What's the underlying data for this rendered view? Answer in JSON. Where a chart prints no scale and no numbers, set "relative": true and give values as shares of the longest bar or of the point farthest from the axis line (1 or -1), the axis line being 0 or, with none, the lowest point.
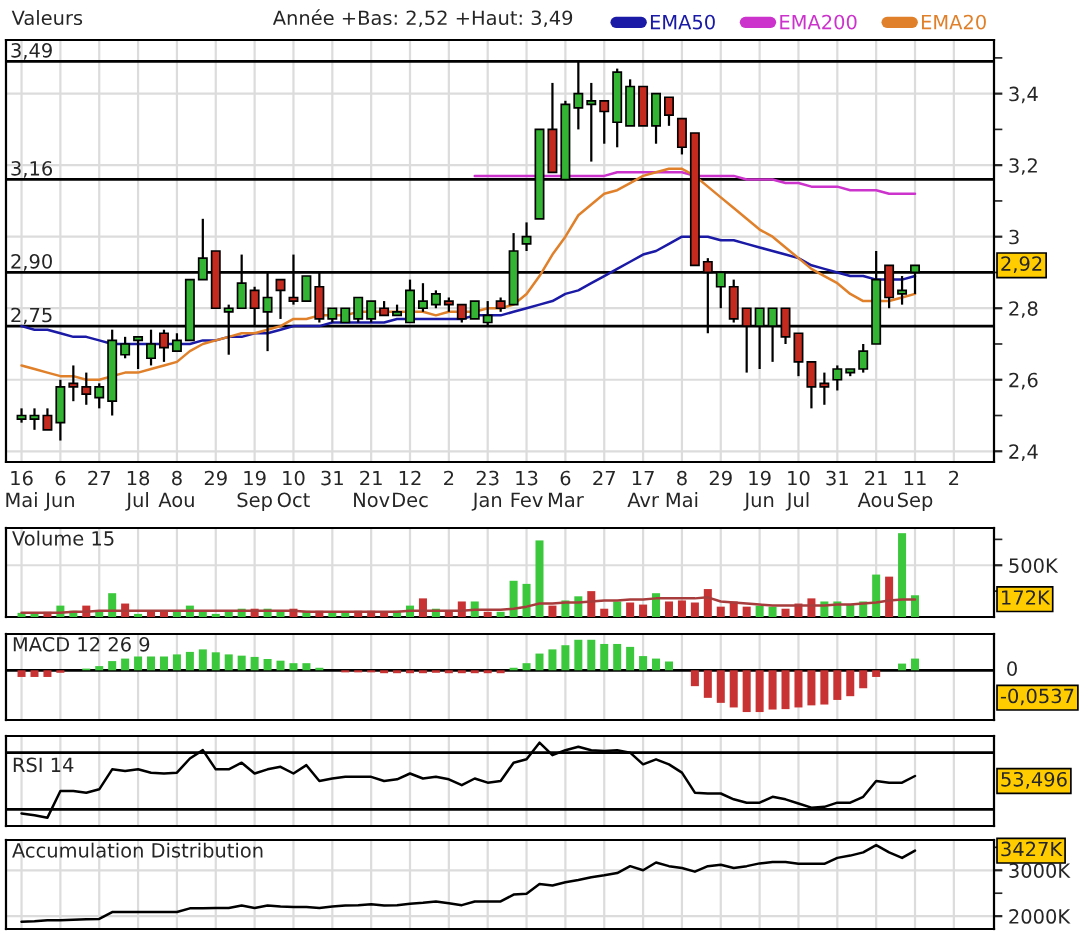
{
  "chart_data": [
    {
      "type": "candlestick",
      "title": "Valeurs",
      "subtitle": "Année +Bas: 2,52 +Haut: 3,49",
      "categories": [
        "16\nMai",
        null,
        null,
        "6\nJun",
        null,
        null,
        "27",
        null,
        null,
        "18\nJul",
        null,
        null,
        "8\nAou",
        null,
        null,
        "29",
        null,
        null,
        "19\nSep",
        null,
        null,
        "10\nOct",
        null,
        null,
        "31",
        null,
        null,
        "21\nNov",
        null,
        null,
        "12\nDec",
        null,
        null,
        "2",
        null,
        null,
        "23\nJan",
        null,
        null,
        "13\nFev",
        null,
        null,
        "6\nMar",
        null,
        null,
        "27",
        null,
        null,
        "17\nAvr",
        null,
        null,
        "8\nMai",
        null,
        null,
        "29",
        null,
        null,
        "19\nJun",
        null,
        null,
        "10\nJul",
        null,
        null,
        "31",
        null,
        null,
        "21\nAou",
        null,
        null,
        "11\nSep",
        null,
        null,
        "2",
        null,
        null,
        null
      ],
      "ohlc": [
        [
          2.49,
          2.52,
          2.48,
          2.5
        ],
        [
          2.49,
          2.52,
          2.46,
          2.5
        ],
        [
          2.5,
          2.52,
          2.46,
          2.46
        ],
        [
          2.48,
          2.6,
          2.43,
          2.58
        ],
        [
          2.59,
          2.64,
          2.54,
          2.58
        ],
        [
          2.58,
          2.62,
          2.53,
          2.56
        ],
        [
          2.55,
          2.59,
          2.52,
          2.58
        ],
        [
          2.54,
          2.74,
          2.5,
          2.71
        ],
        [
          2.67,
          2.72,
          2.66,
          2.7
        ],
        [
          2.71,
          2.72,
          2.63,
          2.72
        ],
        [
          2.66,
          2.74,
          2.64,
          2.7
        ],
        [
          2.73,
          2.74,
          2.65,
          2.69
        ],
        [
          2.68,
          2.73,
          2.68,
          2.71
        ],
        [
          2.71,
          2.88,
          2.71,
          2.88
        ],
        [
          2.88,
          3.05,
          2.88,
          2.94
        ],
        [
          2.96,
          2.96,
          2.8,
          2.8
        ],
        [
          2.79,
          2.81,
          2.67,
          2.8
        ],
        [
          2.8,
          2.95,
          2.8,
          2.87
        ],
        [
          2.85,
          2.86,
          2.75,
          2.8
        ],
        [
          2.79,
          2.9,
          2.68,
          2.83
        ],
        [
          2.88,
          2.88,
          2.77,
          2.85
        ],
        [
          2.83,
          2.95,
          2.81,
          2.82
        ],
        [
          2.82,
          2.89,
          2.82,
          2.89
        ],
        [
          2.86,
          2.9,
          2.76,
          2.77
        ],
        [
          2.77,
          2.8,
          2.76,
          2.8
        ],
        [
          2.76,
          2.8,
          2.76,
          2.8
        ],
        [
          2.77,
          2.83,
          2.76,
          2.83
        ],
        [
          2.77,
          2.82,
          2.76,
          2.82
        ],
        [
          2.8,
          2.82,
          2.78,
          2.78
        ],
        [
          2.78,
          2.81,
          2.78,
          2.79
        ],
        [
          2.76,
          2.88,
          2.76,
          2.85
        ],
        [
          2.8,
          2.87,
          2.79,
          2.82
        ],
        [
          2.81,
          2.85,
          2.8,
          2.84
        ],
        [
          2.82,
          2.83,
          2.79,
          2.81
        ],
        [
          2.81,
          2.81,
          2.76,
          2.77
        ],
        [
          2.77,
          2.82,
          2.77,
          2.82
        ],
        [
          2.76,
          2.82,
          2.75,
          2.78
        ],
        [
          2.82,
          2.83,
          2.79,
          2.8
        ],
        [
          2.81,
          3.01,
          2.81,
          2.96
        ],
        [
          2.98,
          3.04,
          2.96,
          3.0
        ],
        [
          3.05,
          3.3,
          3.05,
          3.3
        ],
        [
          3.3,
          3.43,
          3.18,
          3.18
        ],
        [
          3.16,
          3.38,
          3.16,
          3.37
        ],
        [
          3.36,
          3.49,
          3.3,
          3.4
        ],
        [
          3.37,
          3.43,
          3.21,
          3.38
        ],
        [
          3.38,
          3.38,
          3.26,
          3.35
        ],
        [
          3.32,
          3.47,
          3.25,
          3.46
        ],
        [
          3.31,
          3.44,
          3.31,
          3.42
        ],
        [
          3.42,
          3.42,
          3.31,
          3.31
        ],
        [
          3.31,
          3.4,
          3.26,
          3.4
        ],
        [
          3.39,
          3.39,
          3.31,
          3.34
        ],
        [
          3.33,
          3.33,
          3.23,
          3.25
        ],
        [
          3.29,
          3.29,
          2.92,
          2.92
        ],
        [
          2.93,
          2.94,
          2.73,
          2.9
        ],
        [
          2.86,
          2.9,
          2.8,
          2.9
        ],
        [
          2.86,
          2.88,
          2.76,
          2.77
        ],
        [
          2.8,
          2.8,
          2.62,
          2.75
        ],
        [
          2.75,
          2.8,
          2.63,
          2.8
        ],
        [
          2.75,
          2.8,
          2.65,
          2.8
        ],
        [
          2.8,
          2.8,
          2.7,
          2.72
        ],
        [
          2.73,
          2.73,
          2.61,
          2.65
        ],
        [
          2.65,
          2.65,
          2.52,
          2.58
        ],
        [
          2.59,
          2.62,
          2.53,
          2.58
        ],
        [
          2.6,
          2.64,
          2.57,
          2.63
        ],
        [
          2.62,
          2.63,
          2.61,
          2.63
        ],
        [
          2.63,
          2.7,
          2.62,
          2.68
        ],
        [
          2.7,
          2.96,
          2.7,
          2.88
        ],
        [
          2.92,
          2.92,
          2.8,
          2.83
        ],
        [
          2.84,
          2.89,
          2.81,
          2.85
        ],
        [
          2.9,
          2.92,
          2.84,
          2.92
        ],
        null,
        null,
        null,
        null,
        null,
        null
      ],
      "colors": [
        "#33b533",
        "#33b533",
        "#c42a1e",
        "#33b533",
        "#c42a1e",
        "#c42a1e",
        "#33b533",
        "#33b533",
        "#33b533",
        "#33b533",
        "#33b533",
        "#c42a1e",
        "#33b533",
        "#33b533",
        "#33b533",
        "#c42a1e",
        "#33b533",
        "#33b533",
        "#c42a1e",
        "#33b533",
        "#c42a1e",
        "#c42a1e",
        "#33b533",
        "#c42a1e",
        "#33b533",
        "#33b533",
        "#33b533",
        "#33b533",
        "#c42a1e",
        "#33b533",
        "#33b533",
        "#33b533",
        "#33b533",
        "#c42a1e",
        "#c42a1e",
        "#33b533",
        "#33b533",
        "#c42a1e",
        "#33b533",
        "#33b533",
        "#33b533",
        "#c42a1e",
        "#33b533",
        "#33b533",
        "#33b533",
        "#c42a1e",
        "#33b533",
        "#33b533",
        "#c42a1e",
        "#33b533",
        "#c42a1e",
        "#c42a1e",
        "#c42a1e",
        "#c42a1e",
        "#33b533",
        "#c42a1e",
        "#c42a1e",
        "#33b533",
        "#33b533",
        "#c42a1e",
        "#c42a1e",
        "#c42a1e",
        "#c42a1e",
        "#33b533",
        "#33b533",
        "#33b533",
        "#33b533",
        "#c42a1e",
        "#33b533",
        "#33b533",
        null,
        null,
        null,
        null,
        null,
        null
      ],
      "series": [
        {
          "name": "EMA50",
          "type": "line",
          "color": "#1a1aa6",
          "values": [
            2.75,
            2.74,
            2.74,
            2.73,
            2.72,
            2.72,
            2.71,
            2.7,
            2.7,
            2.7,
            2.7,
            2.7,
            2.7,
            2.7,
            2.71,
            2.71,
            2.72,
            2.72,
            2.73,
            2.73,
            2.74,
            2.75,
            2.75,
            2.75,
            2.76,
            2.76,
            2.76,
            2.76,
            2.76,
            2.77,
            2.77,
            2.77,
            2.77,
            2.77,
            2.77,
            2.78,
            2.78,
            2.78,
            2.79,
            2.8,
            2.81,
            2.82,
            2.84,
            2.85,
            2.87,
            2.89,
            2.91,
            2.93,
            2.95,
            2.96,
            2.98,
            3.0,
            3.0,
            3.0,
            2.99,
            2.99,
            2.98,
            2.97,
            2.96,
            2.95,
            2.94,
            2.92,
            2.91,
            2.9,
            2.89,
            2.89,
            2.88,
            2.88,
            2.88,
            2.89,
            null,
            null,
            null,
            null,
            null,
            null
          ]
        },
        {
          "name": "EMA200",
          "type": "line",
          "color": "#cc33cc",
          "values": [
            null,
            null,
            null,
            null,
            null,
            null,
            null,
            null,
            null,
            null,
            null,
            null,
            null,
            null,
            null,
            null,
            null,
            null,
            null,
            null,
            null,
            null,
            null,
            null,
            null,
            null,
            null,
            null,
            null,
            null,
            null,
            null,
            null,
            null,
            null,
            3.17,
            3.17,
            3.17,
            3.17,
            3.17,
            3.17,
            3.17,
            3.17,
            3.17,
            3.17,
            3.17,
            3.18,
            3.18,
            3.18,
            3.18,
            3.18,
            3.18,
            3.17,
            3.17,
            3.17,
            3.17,
            3.16,
            3.16,
            3.16,
            3.15,
            3.15,
            3.14,
            3.14,
            3.14,
            3.13,
            3.13,
            3.13,
            3.12,
            3.12,
            3.12,
            null,
            null,
            null,
            null,
            null,
            null
          ]
        },
        {
          "name": "EMA20",
          "type": "line",
          "color": "#e0802a",
          "values": [
            2.64,
            2.63,
            2.62,
            2.61,
            2.61,
            2.6,
            2.6,
            2.61,
            2.62,
            2.62,
            2.63,
            2.64,
            2.65,
            2.68,
            2.7,
            2.71,
            2.72,
            2.73,
            2.73,
            2.74,
            2.75,
            2.77,
            2.77,
            2.78,
            2.78,
            2.78,
            2.79,
            2.79,
            2.79,
            2.79,
            2.79,
            2.79,
            2.78,
            2.79,
            2.79,
            2.79,
            2.8,
            2.8,
            2.81,
            2.84,
            2.89,
            2.95,
            3.0,
            3.06,
            3.09,
            3.12,
            3.13,
            3.15,
            3.17,
            3.18,
            3.19,
            3.19,
            3.17,
            3.14,
            3.11,
            3.08,
            3.05,
            3.02,
            3.0,
            2.97,
            2.94,
            2.91,
            2.89,
            2.87,
            2.84,
            2.82,
            2.82,
            2.82,
            2.83,
            2.84,
            null,
            null,
            null,
            null,
            null,
            null
          ]
        }
      ],
      "ylim": [
        2.37,
        3.55
      ],
      "yticks": [
        {
          "value": 2.4,
          "label": "2,4"
        },
        {
          "value": 2.5,
          "label": null
        },
        {
          "value": 2.6,
          "label": "2,6"
        },
        {
          "value": 2.7,
          "label": null
        },
        {
          "value": 2.8,
          "label": "2,8"
        },
        {
          "value": 2.9,
          "label": null
        },
        3,
        {
          "value": 3.1,
          "label": null
        },
        {
          "value": 3.2,
          "label": "3,2"
        },
        {
          "value": 3.3,
          "label": null
        },
        {
          "value": 3.4,
          "label": "3,4"
        },
        {
          "value": 3.5,
          "label": null
        }
      ],
      "grid": true,
      "legend": "top right",
      "ref_lines": [
        {
          "axis": "y",
          "value": 3.49,
          "label": "3,49",
          "color": "#000000"
        },
        {
          "axis": "y",
          "value": 3.16,
          "label": "3,16",
          "color": "#000000"
        },
        {
          "axis": "y",
          "value": 2.9,
          "label": "2,90",
          "color": "#000000"
        },
        {
          "axis": "y",
          "value": 2.75,
          "label": "2,75",
          "color": "#000000"
        }
      ],
      "annotations": [
        {
          "text": "2,92",
          "y": 2.92
        }
      ]
    },
    {
      "type": "bar",
      "title": "Volume 15",
      "categories": [
        null,
        null,
        null,
        null,
        null,
        null,
        null,
        null,
        null,
        null,
        null,
        null,
        null,
        null,
        null,
        null,
        null,
        null,
        null,
        null,
        null,
        null,
        null,
        null,
        null,
        null,
        null,
        null,
        null,
        null,
        null,
        null,
        null,
        null,
        null,
        null,
        null,
        null,
        null,
        null,
        null,
        null,
        null,
        null,
        null,
        null,
        null,
        null,
        null,
        null,
        null,
        null,
        null,
        null,
        null,
        null,
        null,
        null,
        null,
        null,
        null,
        null,
        null,
        null,
        null,
        null,
        null,
        null,
        null,
        null,
        null,
        null,
        null,
        null,
        null,
        null
      ],
      "series": [
        {
          "type": "bar",
          "colors": [
            "#3cc83c",
            "#3cc83c",
            "#c83232",
            "#3cc83c",
            "#3cc83c",
            "#c83232",
            "#3cc83c",
            "#3cc83c",
            "#c83232",
            "#3cc83c",
            "#c83232",
            "#c83232",
            "#3cc83c",
            "#3cc83c",
            "#3cc83c",
            "#3cc83c",
            "#3cc83c",
            "#3cc83c",
            "#c83232",
            "#3cc83c",
            "#3cc83c",
            "#c83232",
            "#3cc83c",
            "#c83232",
            "#3cc83c",
            "#3cc83c",
            "#c83232",
            "#c83232",
            "#c83232",
            "#3cc83c",
            "#3cc83c",
            "#c83232",
            "#3cc83c",
            "#c83232",
            "#c83232",
            "#3cc83c",
            "#c83232",
            "#3cc83c",
            "#3cc83c",
            "#3cc83c",
            "#3cc83c",
            "#c83232",
            "#3cc83c",
            "#3cc83c",
            "#c83232",
            "#c83232",
            "#3cc83c",
            "#c83232",
            "#c83232",
            "#3cc83c",
            "#c83232",
            "#c83232",
            "#c83232",
            "#c83232",
            "#c83232",
            "#c83232",
            "#c83232",
            "#3cc83c",
            "#3cc83c",
            "#c83232",
            "#c83232",
            "#c83232",
            "#3cc83c",
            "#3cc83c",
            "#3cc83c",
            "#3cc83c",
            "#3cc83c",
            "#c83232",
            "#3cc83c",
            "#3cc83c",
            null,
            null,
            null,
            null,
            null,
            null
          ],
          "values": [
            40000,
            40000,
            50000,
            110000,
            60000,
            110000,
            60000,
            230000,
            130000,
            30000,
            60000,
            60000,
            60000,
            110000,
            60000,
            30000,
            50000,
            80000,
            80000,
            80000,
            60000,
            80000,
            60000,
            60000,
            40000,
            40000,
            60000,
            60000,
            40000,
            60000,
            110000,
            180000,
            80000,
            60000,
            150000,
            150000,
            50000,
            50000,
            350000,
            320000,
            740000,
            110000,
            160000,
            200000,
            250000,
            80000,
            150000,
            140000,
            120000,
            230000,
            150000,
            160000,
            140000,
            270000,
            100000,
            150000,
            100000,
            110000,
            100000,
            80000,
            130000,
            180000,
            150000,
            150000,
            120000,
            150000,
            410000,
            390000,
            810000,
            210000,
            null,
            null,
            null,
            null,
            null,
            null
          ]
        },
        {
          "type": "line",
          "color": "#a83c3c",
          "values": [
            40000,
            40000,
            40000,
            40000,
            50000,
            50000,
            60000,
            60000,
            60000,
            60000,
            60000,
            60000,
            60000,
            60000,
            60000,
            60000,
            60000,
            60000,
            60000,
            60000,
            60000,
            60000,
            50000,
            50000,
            50000,
            50000,
            50000,
            50000,
            50000,
            50000,
            60000,
            60000,
            60000,
            60000,
            60000,
            70000,
            70000,
            70000,
            80000,
            100000,
            130000,
            130000,
            140000,
            140000,
            150000,
            160000,
            160000,
            170000,
            170000,
            180000,
            180000,
            180000,
            180000,
            190000,
            150000,
            140000,
            130000,
            120000,
            110000,
            110000,
            110000,
            110000,
            110000,
            120000,
            120000,
            130000,
            140000,
            160000,
            170000,
            170000,
            null,
            null,
            null,
            null,
            null,
            null
          ]
        }
      ],
      "ylim": [
        0,
        860000
      ],
      "yticks": [
        {
          "value": 250000,
          "label": null
        },
        {
          "value": 500000,
          "label": "500K"
        },
        {
          "value": 750000,
          "label": null
        }
      ],
      "grid": true,
      "tick_labels": "y",
      "annotations": [
        {
          "text": "172K",
          "y": 172000
        }
      ]
    },
    {
      "type": "bar",
      "title": "MACD 12 26 9",
      "relative": true,
      "categories": [
        null,
        null,
        null,
        null,
        null,
        null,
        null,
        null,
        null,
        null,
        null,
        null,
        null,
        null,
        null,
        null,
        null,
        null,
        null,
        null,
        null,
        null,
        null,
        null,
        null,
        null,
        null,
        null,
        null,
        null,
        null,
        null,
        null,
        null,
        null,
        null,
        null,
        null,
        null,
        null,
        null,
        null,
        null,
        null,
        null,
        null,
        null,
        null,
        null,
        null,
        null,
        null,
        null,
        null,
        null,
        null,
        null,
        null,
        null,
        null,
        null,
        null,
        null,
        null,
        null,
        null,
        null,
        null,
        null,
        null,
        null,
        null,
        null,
        null,
        null,
        null
      ],
      "values": [
        -0.16,
        -0.16,
        -0.16,
        -0.06,
        null,
        0.04,
        0.1,
        0.22,
        0.28,
        0.33,
        0.33,
        0.33,
        0.38,
        0.44,
        0.5,
        0.43,
        0.38,
        0.35,
        0.32,
        0.27,
        0.23,
        0.17,
        0.17,
        0.06,
        null,
        -0.05,
        -0.05,
        -0.05,
        -0.07,
        -0.07,
        -0.07,
        -0.07,
        -0.06,
        -0.07,
        -0.07,
        -0.07,
        -0.07,
        -0.07,
        0.06,
        0.17,
        0.4,
        0.5,
        0.6,
        0.73,
        0.73,
        0.63,
        0.63,
        0.56,
        0.34,
        0.28,
        0.21,
        null,
        -0.38,
        -0.66,
        -0.78,
        -0.89,
        -1,
        -1,
        -0.94,
        -0.93,
        -0.89,
        -0.84,
        -0.82,
        -0.71,
        -0.62,
        -0.43,
        -0.16,
        null,
        0.16,
        0.28,
        null,
        null,
        null,
        null,
        null,
        null
      ],
      "colors": [
        "#c83232",
        "#c83232",
        "#c83232",
        "#c83232",
        null,
        "#3cc83c",
        "#3cc83c",
        "#3cc83c",
        "#3cc83c",
        "#3cc83c",
        "#3cc83c",
        "#3cc83c",
        "#3cc83c",
        "#3cc83c",
        "#3cc83c",
        "#3cc83c",
        "#3cc83c",
        "#3cc83c",
        "#3cc83c",
        "#3cc83c",
        "#3cc83c",
        "#3cc83c",
        "#3cc83c",
        "#3cc83c",
        null,
        "#c83232",
        "#c83232",
        "#c83232",
        "#c83232",
        "#c83232",
        "#c83232",
        "#c83232",
        "#c83232",
        "#c83232",
        "#c83232",
        "#c83232",
        "#c83232",
        "#c83232",
        "#3cc83c",
        "#3cc83c",
        "#3cc83c",
        "#3cc83c",
        "#3cc83c",
        "#3cc83c",
        "#3cc83c",
        "#3cc83c",
        "#3cc83c",
        "#3cc83c",
        "#3cc83c",
        "#3cc83c",
        "#3cc83c",
        null,
        "#c83232",
        "#c83232",
        "#c83232",
        "#c83232",
        "#c83232",
        "#c83232",
        "#c83232",
        "#c83232",
        "#c83232",
        "#c83232",
        "#c83232",
        "#c83232",
        "#c83232",
        "#c83232",
        "#c83232",
        null,
        "#3cc83c",
        "#3cc83c",
        null,
        null,
        null,
        null,
        null,
        null
      ],
      "ref_lines": [
        {
          "axis": "y",
          "value": 0,
          "label": "0",
          "color": "#000000"
        }
      ],
      "grid": "x",
      "tick_labels": false,
      "annotations": [
        "-0,0537"
      ]
    },
    {
      "type": "line",
      "title": "RSI 14",
      "color": "#000000",
      "relative": true,
      "categories": [
        null,
        null,
        null,
        null,
        null,
        null,
        null,
        null,
        null,
        null,
        null,
        null,
        null,
        null,
        null,
        null,
        null,
        null,
        null,
        null,
        null,
        null,
        null,
        null,
        null,
        null,
        null,
        null,
        null,
        null,
        null,
        null,
        null,
        null,
        null,
        null,
        null,
        null,
        null,
        null,
        null,
        null,
        null,
        null,
        null,
        null,
        null,
        null,
        null,
        null,
        null,
        null,
        null,
        null,
        null,
        null,
        null,
        null,
        null,
        null,
        null,
        null,
        null,
        null,
        null,
        null,
        null,
        null,
        null,
        null,
        null,
        null,
        null,
        null,
        null,
        null
      ],
      "values": [
        0.15,
        0.13,
        0.1,
        0.42,
        0.42,
        0.4,
        0.44,
        0.68,
        0.66,
        0.68,
        0.64,
        0.63,
        0.64,
        0.81,
        0.91,
        0.68,
        0.68,
        0.76,
        0.63,
        0.68,
        0.71,
        0.63,
        0.73,
        0.54,
        0.57,
        0.59,
        0.59,
        0.59,
        0.54,
        0.56,
        0.63,
        0.57,
        0.59,
        0.56,
        0.49,
        0.57,
        0.52,
        0.54,
        0.76,
        0.8,
        1,
        0.85,
        0.91,
        0.95,
        0.91,
        0.9,
        0.91,
        0.88,
        0.74,
        0.8,
        0.74,
        0.64,
        0.4,
        0.39,
        0.39,
        0.32,
        0.28,
        0.28,
        0.35,
        0.32,
        0.27,
        0.22,
        0.23,
        0.28,
        0.28,
        0.35,
        0.54,
        0.52,
        0.52,
        0.6,
        null,
        null,
        null,
        null,
        null,
        null
      ],
      "ref_lines": [
        {
          "axis": "y",
          "value": 0.88,
          "color": "#000000"
        },
        {
          "axis": "y",
          "value": 0.2,
          "color": "#000000"
        }
      ],
      "grid": "x",
      "tick_labels": false,
      "annotations": [
        "53,496"
      ]
    },
    {
      "type": "line",
      "title": "Accumulation Distribution",
      "color": "#000000",
      "categories": [
        null,
        null,
        null,
        null,
        null,
        null,
        null,
        null,
        null,
        null,
        null,
        null,
        null,
        null,
        null,
        null,
        null,
        null,
        null,
        null,
        null,
        null,
        null,
        null,
        null,
        null,
        null,
        null,
        null,
        null,
        null,
        null,
        null,
        null,
        null,
        null,
        null,
        null,
        null,
        null,
        null,
        null,
        null,
        null,
        null,
        null,
        null,
        null,
        null,
        null,
        null,
        null,
        null,
        null,
        null,
        null,
        null,
        null,
        null,
        null,
        null,
        null,
        null,
        null,
        null,
        null,
        null,
        null,
        null,
        null,
        null,
        null,
        null,
        null,
        null,
        null
      ],
      "values": [
        1880000,
        1890000,
        1910000,
        1910000,
        1920000,
        1930000,
        1940000,
        2090000,
        2090000,
        2090000,
        2090000,
        2090000,
        2090000,
        2170000,
        2170000,
        2180000,
        2180000,
        2230000,
        2180000,
        2230000,
        2210000,
        2200000,
        2200000,
        2180000,
        2210000,
        2230000,
        2240000,
        2260000,
        2230000,
        2240000,
        2270000,
        2290000,
        2320000,
        2280000,
        2240000,
        2320000,
        2320000,
        2320000,
        2470000,
        2490000,
        2700000,
        2670000,
        2740000,
        2790000,
        2850000,
        2890000,
        2940000,
        3090000,
        3000000,
        3170000,
        3090000,
        3050000,
        2970000,
        3090000,
        3120000,
        3050000,
        3090000,
        3150000,
        3180000,
        3180000,
        3140000,
        3140000,
        3140000,
        3270000,
        3320000,
        3390000,
        3550000,
        3390000,
        3270000,
        3430000,
        null,
        null,
        null,
        null,
        null,
        null
      ],
      "ylim": [
        1720000,
        3660000
      ],
      "yticks": [
        {
          "value": 2000000,
          "label": "2000K"
        },
        {
          "value": 2500000,
          "label": null
        },
        {
          "value": 3000000,
          "label": "3000K"
        },
        {
          "value": 3500000,
          "label": null
        }
      ],
      "grid": true,
      "tick_labels": "y",
      "annotations": [
        {
          "text": "3427K",
          "y": 3427000
        }
      ]
    }
  ]
}
